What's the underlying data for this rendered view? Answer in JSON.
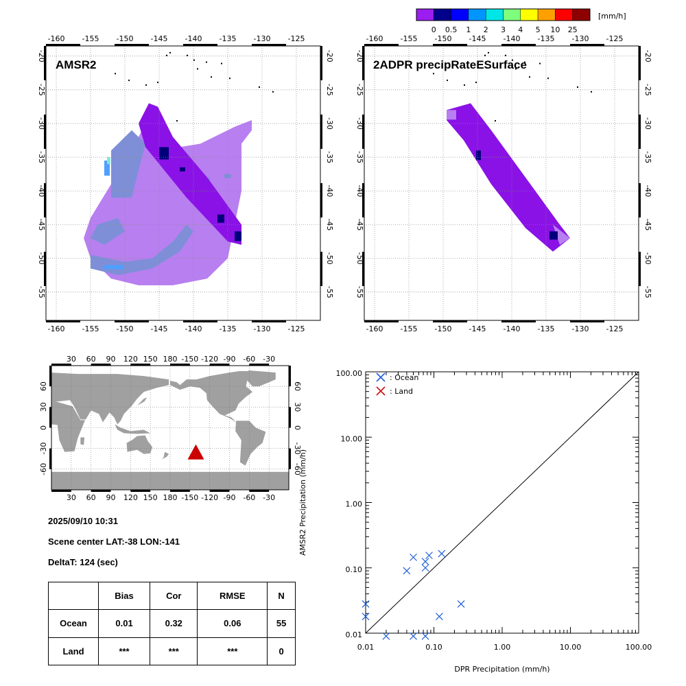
{
  "colorbar": {
    "unit": "[mm/h]",
    "labels": [
      "0",
      "0.5",
      "1",
      "2",
      "3",
      "4",
      "5",
      "10",
      "25"
    ],
    "colors": [
      "#9b1df0",
      "#00008c",
      "#0000ff",
      "#0096ff",
      "#00e6e6",
      "#7dff7d",
      "#ffff00",
      "#ffa000",
      "#ff0000",
      "#8c0000"
    ]
  },
  "map_panels": {
    "lon_ticks": [
      "-160",
      "-155",
      "-150",
      "-145",
      "-140",
      "-135",
      "-130",
      "-125"
    ],
    "lat_ticks": [
      "-20",
      "-25",
      "-30",
      "-35",
      "-40",
      "-45",
      "-50",
      "-55"
    ],
    "left_title": "AMSR2",
    "right_title": "2ADPR precipRateESurface",
    "colors": {
      "light_rain": "#b87ff0",
      "moderate": "#7e8fd8",
      "heavy": "#00007a",
      "swath": "#8a12e6",
      "light_blue": "#4fa0ff",
      "cyan": "#7fe8e0"
    }
  },
  "world_map": {
    "top_ticks": [
      "30",
      "60",
      "90",
      "120",
      "150",
      "180",
      "-150",
      "-120",
      "-90",
      "-60",
      "-30"
    ],
    "bottom_ticks": [
      "30",
      "60",
      "90",
      "120",
      "150",
      "180",
      "-150",
      "-120",
      "-90",
      "-60",
      "-30"
    ],
    "left_ticks": [
      "60",
      "30",
      "0",
      "-30",
      "-60"
    ],
    "right_ticks": [
      "60",
      "30",
      "0",
      "-30",
      "-60"
    ],
    "marker_color": "#cc0000"
  },
  "info": {
    "datetime": "2025/09/10 10:31",
    "scene_center": "Scene center LAT:-38   LON:-141",
    "delta_t": "DeltaT:  124 (sec)"
  },
  "stats_table": {
    "headers": [
      "",
      "Bias",
      "Cor",
      "RMSE",
      "N"
    ],
    "rows": [
      [
        "Ocean",
        "0.01",
        "0.32",
        "0.06",
        "55"
      ],
      [
        "Land",
        "***",
        "***",
        "***",
        "0"
      ]
    ]
  },
  "chart_data": {
    "type": "scatter",
    "xlabel": "DPR Precipitation (mm/h)",
    "ylabel": "AMSR2 Precipitation (mm/h)",
    "xscale": "log",
    "yscale": "log",
    "xlim": [
      0.01,
      100
    ],
    "ylim": [
      0.01,
      100
    ],
    "x_ticks": [
      "0.01",
      "0.10",
      "1.00",
      "10.00",
      "100.00"
    ],
    "y_ticks": [
      "0.01",
      "0.10",
      "1.00",
      "10.00",
      "100.00"
    ],
    "legend_position": "top-left",
    "reference_line": "1:1",
    "series": [
      {
        "name": ": Ocean",
        "color": "#1f5fd6",
        "points": [
          [
            0.01,
            0.028
          ],
          [
            0.01,
            0.018
          ],
          [
            0.02,
            0.009
          ],
          [
            0.05,
            0.009
          ],
          [
            0.075,
            0.009
          ],
          [
            0.04,
            0.09
          ],
          [
            0.05,
            0.145
          ],
          [
            0.075,
            0.125
          ],
          [
            0.075,
            0.1
          ],
          [
            0.085,
            0.155
          ],
          [
            0.13,
            0.165
          ],
          [
            0.12,
            0.018
          ],
          [
            0.25,
            0.028
          ]
        ]
      },
      {
        "name": ": Land",
        "color": "#cc1111",
        "points": []
      }
    ]
  }
}
